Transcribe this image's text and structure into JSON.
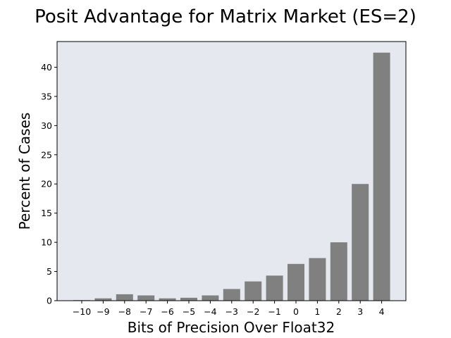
{
  "chart_data": {
    "type": "bar",
    "title": "Posit Advantage for Matrix Market (ES=2)",
    "xlabel": "Bits of Precision Over Float32",
    "ylabel": "Percent of Cases",
    "categories": [
      "−10",
      "−9",
      "−8",
      "−7",
      "−6",
      "−5",
      "−4",
      "−3",
      "−2",
      "−1",
      "0",
      "1",
      "2",
      "3",
      "4"
    ],
    "values": [
      0.1,
      0.4,
      1.1,
      0.9,
      0.4,
      0.5,
      0.9,
      2.0,
      3.3,
      4.3,
      6.3,
      7.3,
      10.0,
      20.0,
      42.5
    ],
    "ylim": [
      0,
      44.4
    ],
    "yticks": [
      0,
      5,
      10,
      15,
      20,
      25,
      30,
      35,
      40
    ],
    "grid": false,
    "colors": {
      "bar": "#808080",
      "plot_background": "#e5e8ee",
      "frame": "#000000"
    }
  }
}
